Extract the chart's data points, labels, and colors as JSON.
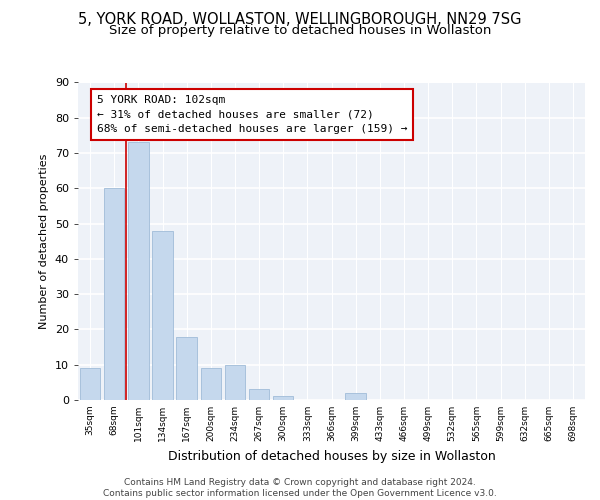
{
  "title1": "5, YORK ROAD, WOLLASTON, WELLINGBOROUGH, NN29 7SG",
  "title2": "Size of property relative to detached houses in Wollaston",
  "xlabel": "Distribution of detached houses by size in Wollaston",
  "ylabel": "Number of detached properties",
  "categories": [
    "35sqm",
    "68sqm",
    "101sqm",
    "134sqm",
    "167sqm",
    "200sqm",
    "234sqm",
    "267sqm",
    "300sqm",
    "333sqm",
    "366sqm",
    "399sqm",
    "433sqm",
    "466sqm",
    "499sqm",
    "532sqm",
    "565sqm",
    "599sqm",
    "632sqm",
    "665sqm",
    "698sqm"
  ],
  "values": [
    9,
    60,
    73,
    48,
    18,
    9,
    10,
    3,
    1,
    0,
    0,
    2,
    0,
    0,
    0,
    0,
    0,
    0,
    0,
    0,
    0
  ],
  "bar_color": "#c5d8ed",
  "bar_edge_color": "#a0bcd8",
  "highlight_index": 2,
  "highlight_line_color": "#cc0000",
  "annotation_box_color": "#cc0000",
  "annotation_line1": "5 YORK ROAD: 102sqm",
  "annotation_line2": "← 31% of detached houses are smaller (72)",
  "annotation_line3": "68% of semi-detached houses are larger (159) →",
  "annotation_fontsize": 8.0,
  "ylim": [
    0,
    90
  ],
  "yticks": [
    0,
    10,
    20,
    30,
    40,
    50,
    60,
    70,
    80,
    90
  ],
  "bg_color": "#eef2f8",
  "footer": "Contains HM Land Registry data © Crown copyright and database right 2024.\nContains public sector information licensed under the Open Government Licence v3.0.",
  "title1_fontsize": 10.5,
  "title2_fontsize": 9.5,
  "footer_fontsize": 6.5
}
